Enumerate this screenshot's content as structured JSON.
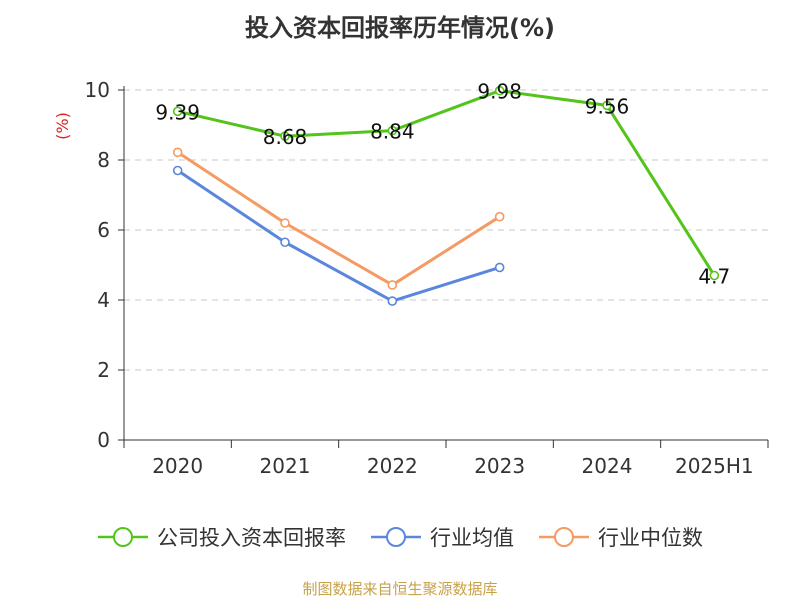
{
  "title": "投入资本回报率历年情况(%)",
  "source_note": "制图数据来自恒生聚源数据库",
  "chart_data": {
    "type": "line",
    "title": "投入资本回报率历年情况(%)",
    "ylabel": "(%)",
    "xlabel": "",
    "categories": [
      "2020",
      "2021",
      "2022",
      "2023",
      "2024",
      "2025H1"
    ],
    "ylim": [
      0,
      10
    ],
    "yticks": [
      0,
      2,
      4,
      6,
      8,
      10
    ],
    "grid": true,
    "legend_position": "bottom",
    "series": [
      {
        "name": "公司投入资本回报率",
        "color": "#52c41a",
        "values": [
          9.39,
          8.68,
          8.84,
          9.98,
          9.56,
          4.7
        ],
        "labels": [
          "9.39",
          "8.68",
          "8.84",
          "9.98",
          "9.56",
          "4.7"
        ]
      },
      {
        "name": "行业均值",
        "color": "#5b86dd",
        "values": [
          7.7,
          5.65,
          3.97,
          4.93,
          null,
          null
        ]
      },
      {
        "name": "行业中位数",
        "color": "#f59a62",
        "values": [
          8.22,
          6.2,
          4.43,
          6.38,
          null,
          null
        ]
      }
    ]
  }
}
